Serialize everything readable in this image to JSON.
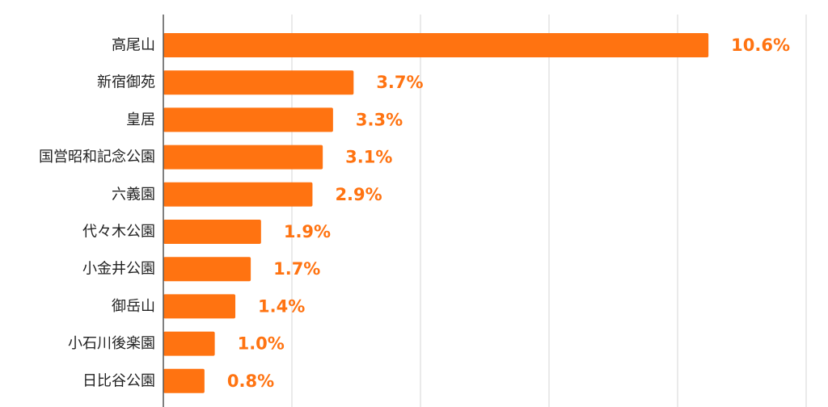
{
  "chart_data": {
    "type": "bar",
    "orientation": "horizontal",
    "categories": [
      "高尾山",
      "新宿御苑",
      "皇居",
      "国営昭和記念公園",
      "六義園",
      "代々木公園",
      "小金井公園",
      "御岳山",
      "小石川後楽園",
      "日比谷公園"
    ],
    "values": [
      10.6,
      3.7,
      3.3,
      3.1,
      2.9,
      1.9,
      1.7,
      1.4,
      1.0,
      0.8
    ],
    "value_labels": [
      "10.6%",
      "3.7%",
      "3.3%",
      "3.1%",
      "2.9%",
      "1.9%",
      "1.7%",
      "1.4%",
      "1.0%",
      "0.8%"
    ],
    "xlim": [
      0,
      12.5
    ],
    "grid": true,
    "bar_color": "#ff7311",
    "label_color": "#ff7311"
  }
}
